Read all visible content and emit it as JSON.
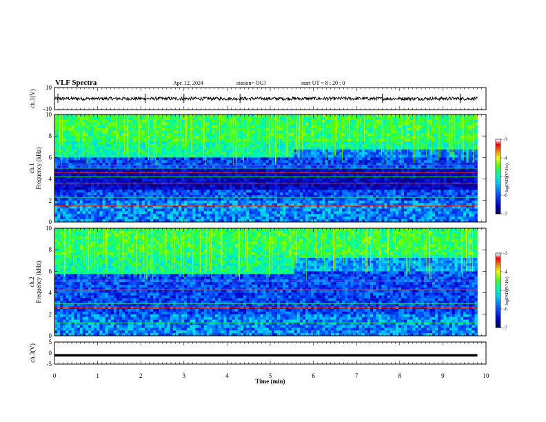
{
  "header": {
    "title": "VLF Spectra",
    "date": "Apr. 12, 2024",
    "station": "station= OUJ",
    "start_ut": "start  UT =   8  : 20 : 0"
  },
  "colors": {
    "colormap": [
      "#000000",
      "#0000cc",
      "#0066ff",
      "#00ccff",
      "#00ff99",
      "#66ff00",
      "#ffff00",
      "#ff6600",
      "#ff0000",
      "#ffffff"
    ],
    "waveform": "#000000",
    "frame": "#000000"
  },
  "chart_data": [
    {
      "type": "line",
      "name": "ch1-waveform",
      "ylabel": "ch.1(V)",
      "ylim": [
        -10,
        10
      ],
      "yticks": [
        "10",
        "-10"
      ],
      "x_range": [
        0,
        9.8
      ],
      "amplitude_approx": 1.5,
      "spikes_at_min": [
        0.08,
        2.1,
        3.0,
        4.3,
        7.6,
        9.4
      ]
    },
    {
      "type": "heatmap",
      "name": "ch1-spectrogram",
      "ylabel": "Frequency (kHz)",
      "ylabel_channel": "ch.1",
      "ylim": [
        0,
        10
      ],
      "yticks": [
        "0",
        "2",
        "4",
        "6",
        "8",
        "10"
      ],
      "x_range": [
        0,
        9.8
      ],
      "colorbar": {
        "label": "log(PSD)(V²/Hz)",
        "ticks": [
          "-3",
          "-4",
          "-5",
          "-6",
          "-7"
        ],
        "range": [
          -7,
          -3
        ]
      },
      "bands": {
        "upper_activity_khz": [
          6,
          10
        ],
        "upper_activity_level": -5.0,
        "dark_band_khz": [
          3,
          5
        ],
        "lower_band_khz": [
          0,
          2
        ],
        "horizontal_line_khz": [
          1.3,
          1.5,
          2.3,
          3.6,
          4.2,
          4.6,
          5.0,
          5.3
        ]
      }
    },
    {
      "type": "heatmap",
      "name": "ch2-spectrogram",
      "ylabel": "Frequency (kHz)",
      "ylabel_channel": "ch.2",
      "ylim": [
        0,
        10
      ],
      "yticks": [
        "0",
        "2",
        "4",
        "6",
        "8",
        "10"
      ],
      "x_range": [
        0,
        9.8
      ],
      "colorbar": {
        "label": "log(PSD)(V²/Hz)",
        "ticks": [
          "-3",
          "-4",
          "-5",
          "-6",
          "-7"
        ],
        "range": [
          -7,
          -3
        ]
      },
      "bands": {
        "upper_activity_khz": [
          6,
          10
        ],
        "upper_activity_level": -5.0,
        "noise_band_khz": [
          5.8,
          6.3
        ],
        "noise_band_end_min": 5.5,
        "lower_band_khz": [
          0,
          2
        ],
        "horizontal_line_khz": [
          1.2,
          2.6,
          3.0,
          4.3,
          5.1
        ]
      }
    },
    {
      "type": "line",
      "name": "ch3-waveform",
      "ylabel": "ch.3(V)",
      "ylim": [
        -5,
        5
      ],
      "yticks": [
        "5",
        "0",
        "-5"
      ],
      "x_range": [
        0,
        9.8
      ],
      "constant_value": -1.0
    }
  ],
  "x_axis": {
    "label": "Time (min)",
    "ticks": [
      "0",
      "1",
      "2",
      "3",
      "4",
      "5",
      "6",
      "7",
      "8",
      "9",
      "10"
    ],
    "xlim": [
      0,
      10
    ]
  }
}
